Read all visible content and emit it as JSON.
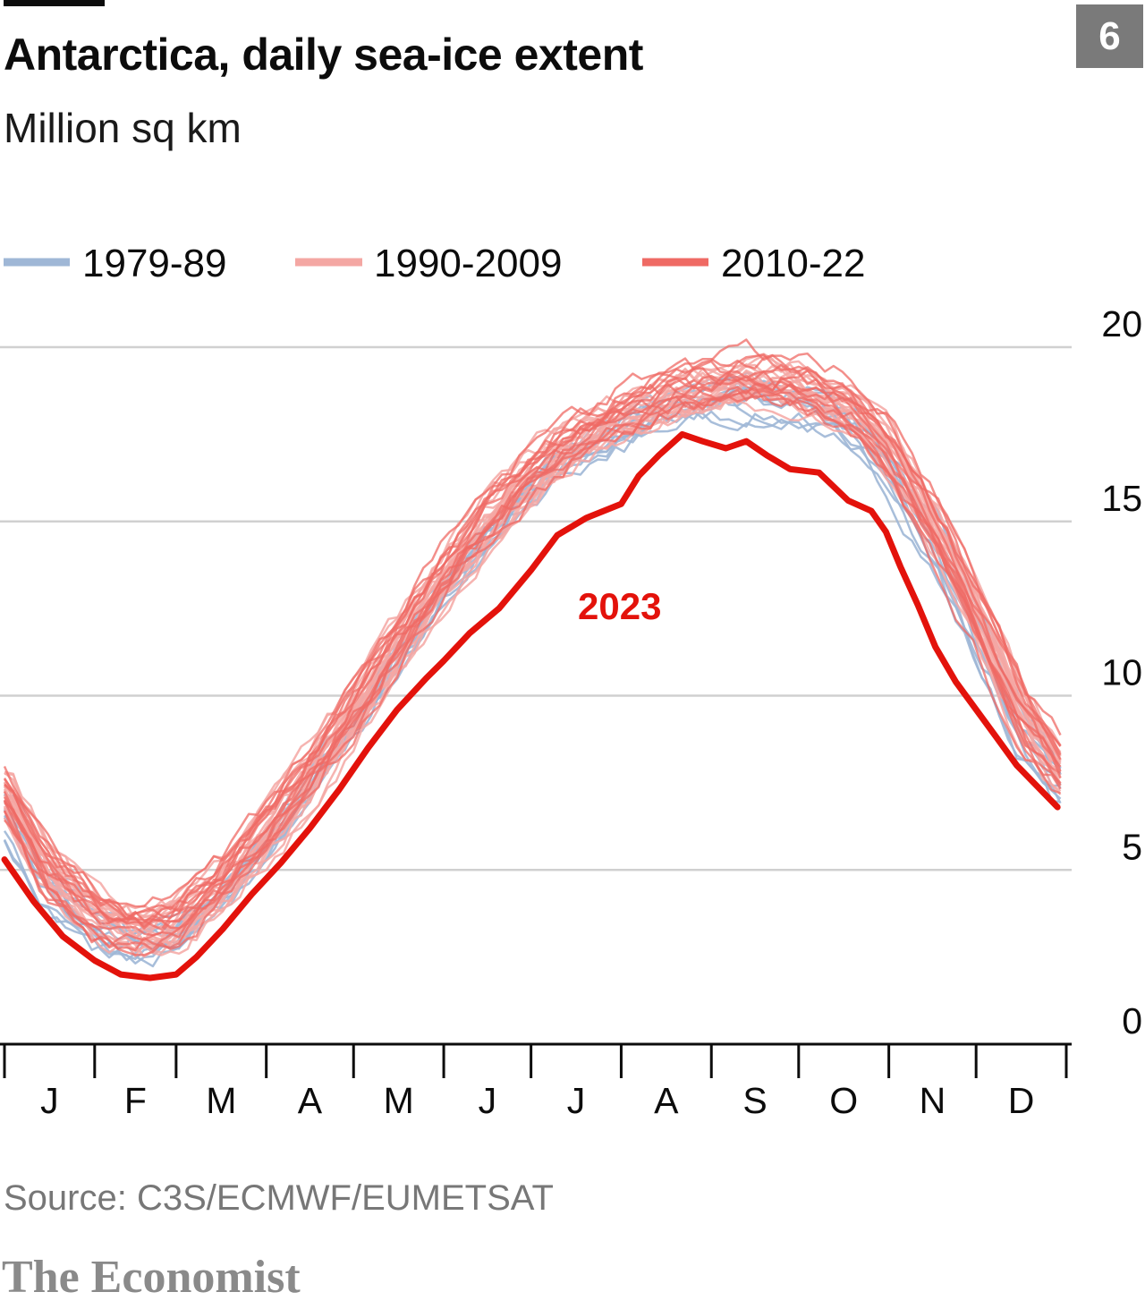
{
  "header": {
    "title": "Antarctica, daily sea-ice extent",
    "subtitle": "Million sq km",
    "chart_number": "6"
  },
  "footer": {
    "source": "Source: C3S/ECMWF/EUMETSAT",
    "brand": "The Economist"
  },
  "colors": {
    "period_1979_89": "#9fb7d6",
    "period_1990_2009": "#f4a7a3",
    "period_2010_22": "#ef6a64",
    "year_2023": "#e3120b",
    "gridline": "#d0d0d0",
    "axis": "#0c0c0c"
  },
  "chart_data": {
    "type": "line",
    "title": "Antarctica, daily sea-ice extent",
    "ylabel": "Million sq km",
    "ylim": [
      0,
      20
    ],
    "yticks": [
      "0",
      "5",
      "10",
      "15",
      "20"
    ],
    "xlim": [
      0,
      365
    ],
    "month_labels": [
      "J",
      "F",
      "M",
      "A",
      "M",
      "J",
      "J",
      "A",
      "S",
      "O",
      "N",
      "D"
    ],
    "grid": true,
    "legend_position": "top-left",
    "legend": [
      {
        "label": "1979-89",
        "color_key": "period_1979_89"
      },
      {
        "label": "1990-2009",
        "color_key": "period_1990_2009"
      },
      {
        "label": "2010-22",
        "color_key": "period_2010_22"
      }
    ],
    "climatology": {
      "x": [
        0,
        15,
        31,
        45,
        59,
        75,
        90,
        105,
        120,
        135,
        151,
        165,
        181,
        195,
        212,
        227,
        243,
        258,
        273,
        290,
        304,
        320,
        334,
        350,
        365
      ],
      "y": [
        7.2,
        4.9,
        3.7,
        3.2,
        3.4,
        4.5,
        6.0,
        7.6,
        9.4,
        11.3,
        13.3,
        14.8,
        16.2,
        17.2,
        17.9,
        18.4,
        18.8,
        18.9,
        18.8,
        18.2,
        17.0,
        14.8,
        12.3,
        9.4,
        7.6
      ]
    },
    "series": [
      {
        "name": "2023",
        "x": [
          0,
          10,
          20,
          31,
          40,
          50,
          59,
          66,
          75,
          85,
          95,
          105,
          115,
          125,
          135,
          145,
          151,
          160,
          170,
          181,
          190,
          200,
          212,
          218,
          225,
          233,
          240,
          248,
          255,
          262,
          270,
          280,
          290,
          298,
          303,
          308,
          314,
          320,
          327,
          334,
          341,
          348,
          355,
          362
        ],
        "y": [
          5.3,
          4.1,
          3.1,
          2.4,
          2.0,
          1.9,
          2.0,
          2.5,
          3.3,
          4.3,
          5.2,
          6.2,
          7.3,
          8.5,
          9.6,
          10.5,
          11.0,
          11.8,
          12.5,
          13.6,
          14.6,
          15.1,
          15.5,
          16.3,
          16.9,
          17.5,
          17.3,
          17.1,
          17.3,
          16.9,
          16.5,
          16.4,
          15.6,
          15.3,
          14.7,
          13.7,
          12.6,
          11.4,
          10.4,
          9.6,
          8.8,
          8.0,
          7.4,
          6.8
        ]
      }
    ],
    "annotations": [
      {
        "text": "2023",
        "series": "2023",
        "color_key": "year_2023"
      }
    ]
  }
}
